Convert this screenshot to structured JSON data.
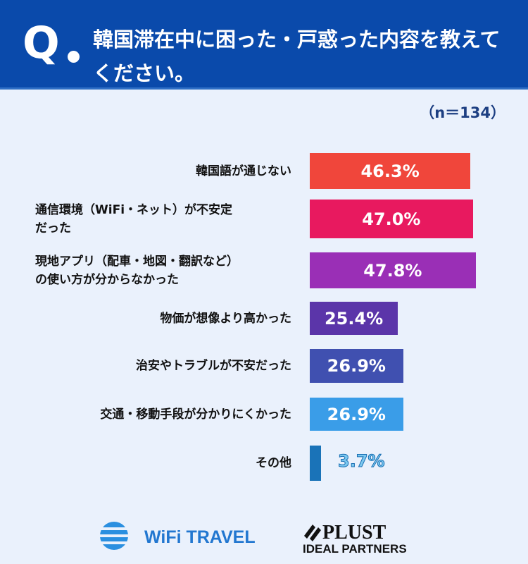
{
  "header": {
    "q": "Q",
    "title": "韓国滞在中に困った・戸惑った内容を教えてください。"
  },
  "sample": "（n＝134）",
  "chart_data": {
    "type": "bar",
    "orientation": "horizontal",
    "title": "韓国滞在中に困った・戸惑った内容を教えてください。",
    "categories": [
      "韓国語が通じない",
      "通信環境（WiFi・ネット）が不安定だった",
      "現地アプリ（配車・地図・翻訳など）の使い方が分からなかった",
      "物価が想像より高かった",
      "治安やトラブルが不安だった",
      "交通・移動手段が分かりにくかった",
      "その他"
    ],
    "category_lines": [
      [
        "韓国語が通じない"
      ],
      [
        "通信環境（WiFi・ネット）が不安定",
        "だった"
      ],
      [
        "現地アプリ（配車・地図・翻訳など）",
        "の使い方が分からなかった"
      ],
      [
        "物価が想像より高かった"
      ],
      [
        "治安やトラブルが不安だった"
      ],
      [
        "交通・移動手段が分かりにくかった"
      ],
      [
        "その他"
      ]
    ],
    "values": [
      46.3,
      47.0,
      47.8,
      25.4,
      26.9,
      26.9,
      3.7
    ],
    "data_labels": [
      "46.3%",
      "47.0%",
      "47.8%",
      "25.4%",
      "26.9%",
      "26.9%",
      "3.7%"
    ],
    "colors": [
      "#f0463b",
      "#e8195f",
      "#9a2fb6",
      "#5b35a9",
      "#4050b0",
      "#3a9de8",
      "#1a73b8"
    ],
    "unit": "%"
  },
  "logos": {
    "wifi": "WiFi TRAVEL",
    "plust": "PLUST",
    "plust_sub": "IDEAL PARTNERS"
  }
}
